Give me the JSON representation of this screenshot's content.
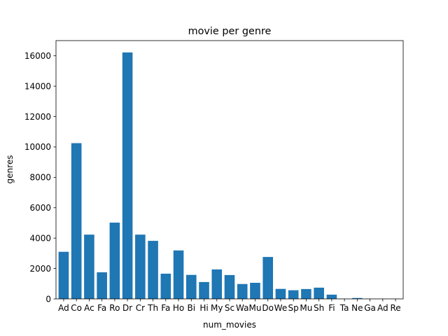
{
  "chart_data": {
    "type": "bar",
    "title": "movie per genre",
    "xlabel": "num_movies",
    "ylabel": "genres",
    "categories": [
      "Ad",
      "Co",
      "Ac",
      "Fa",
      "Ro",
      "Dr",
      "Cr",
      "Th",
      "Fa",
      "Ho",
      "Bi",
      "Hi",
      "My",
      "Sc",
      "Wa",
      "Mu",
      "Do",
      "We",
      "Sp",
      "Mu",
      "Sh",
      "Fi",
      "Ta",
      "Ne",
      "Ga",
      "Ad",
      "Re"
    ],
    "values": [
      3100,
      10250,
      4230,
      1750,
      5020,
      16220,
      4230,
      3820,
      1660,
      3190,
      1580,
      1110,
      1940,
      1570,
      980,
      1060,
      2760,
      660,
      570,
      650,
      740,
      280,
      15,
      60,
      15,
      10,
      10
    ],
    "ylim": [
      0,
      17000
    ],
    "yticks": [
      0,
      2000,
      4000,
      6000,
      8000,
      10000,
      12000,
      14000,
      16000
    ],
    "grid": false,
    "legend": "none",
    "bar_color": "#1f77b4"
  }
}
